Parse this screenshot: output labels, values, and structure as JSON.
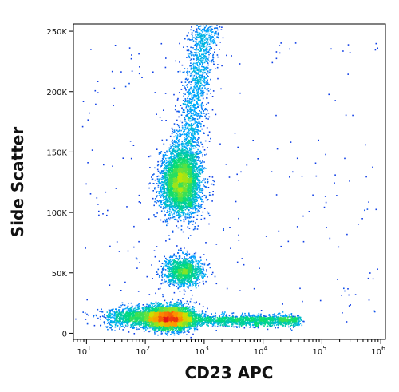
{
  "chart_data": {
    "type": "scatter",
    "title": "",
    "xlabel": "CD23 APC",
    "ylabel": "Side Scatter",
    "x_scale": "log",
    "x_range": [
      6,
      1200000
    ],
    "x_ticks": [
      {
        "value": 10,
        "base": "10",
        "exp": "1"
      },
      {
        "value": 100,
        "base": "10",
        "exp": "2"
      },
      {
        "value": 1000,
        "base": "10",
        "exp": "3"
      },
      {
        "value": 10000,
        "base": "10",
        "exp": "4"
      },
      {
        "value": 100000,
        "base": "10",
        "exp": "5"
      },
      {
        "value": 1000000,
        "base": "10",
        "exp": "6"
      }
    ],
    "y_scale": "linear",
    "y_range": [
      -5000,
      256000
    ],
    "y_ticks": [
      {
        "value": 0,
        "label": "0"
      },
      {
        "value": 50000,
        "label": "50K"
      },
      {
        "value": 100000,
        "label": "100K"
      },
      {
        "value": 150000,
        "label": "150K"
      },
      {
        "value": 200000,
        "label": "200K"
      },
      {
        "value": 250000,
        "label": "250K"
      }
    ],
    "grid": false,
    "legend": "none",
    "color_map": "density (blue → cyan → green → yellow → red)",
    "populations": [
      {
        "x_log": 2.4,
        "y": 13000,
        "weight": 0.3,
        "note": "densest (red)"
      },
      {
        "x_log": 2.6,
        "y": 125000,
        "weight": 0.24,
        "note": "dense (green-yellow)"
      },
      {
        "x_log": 2.65,
        "y": 52000,
        "weight": 0.08,
        "note": "medium (green-cyan)"
      },
      {
        "x_log": 2.9,
        "y": 225000,
        "weight": 0.1,
        "note": "sparse upper extension"
      },
      {
        "x_log": 3.6,
        "y": 10000,
        "weight": 0.1,
        "note": "horizontal tail to ~10^4.6"
      },
      {
        "x_log": 1.8,
        "y": 14000,
        "weight": 0.06,
        "note": "left shoulder"
      }
    ]
  }
}
